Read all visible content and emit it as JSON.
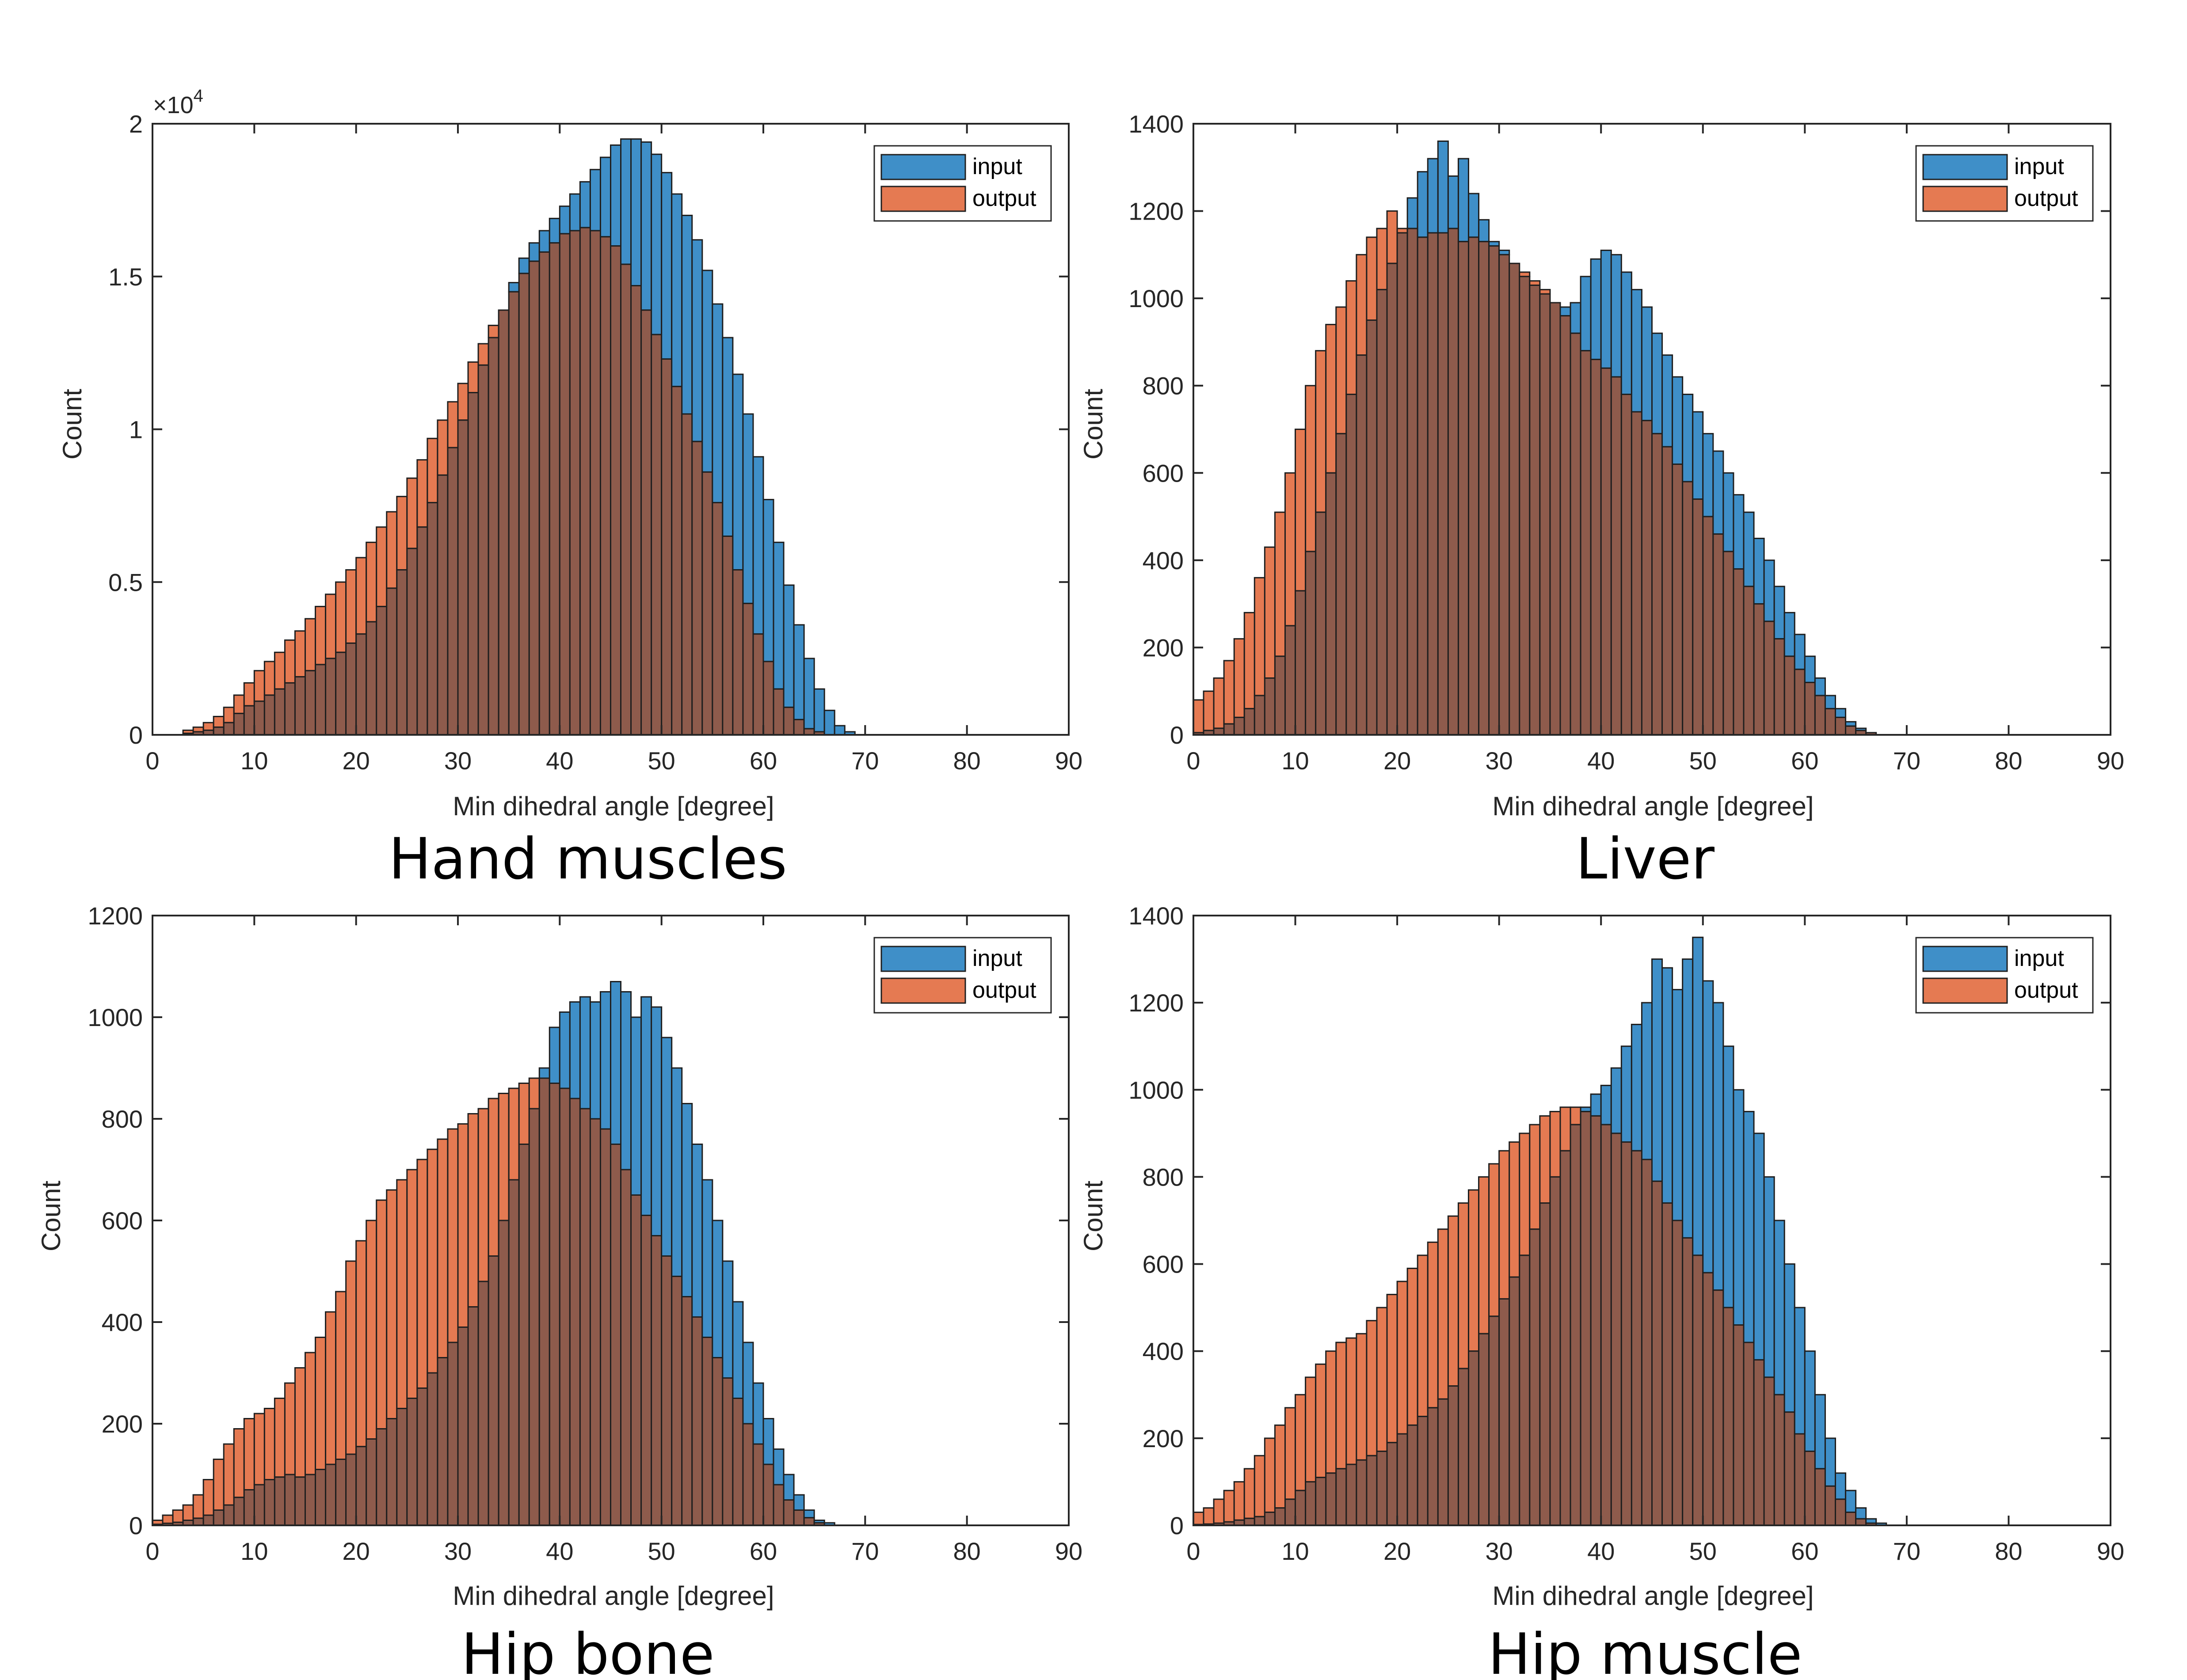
{
  "figure": {
    "series_names": [
      "input",
      "output"
    ],
    "colors": {
      "input": "#3f8fc8",
      "output": "#e57a52",
      "overlap": "#8e5b4c",
      "axes": "#262626",
      "edge": "#1f1f1f"
    }
  },
  "chart_data": [
    {
      "type": "bar",
      "title": "Hand muscles",
      "xlabel": "Min dihedral angle [degree]",
      "ylabel": "Count",
      "xlim": [
        0,
        90
      ],
      "ylim": [
        0,
        20000
      ],
      "bin_width": 1,
      "xticks": [
        0,
        10,
        20,
        30,
        40,
        50,
        60,
        70,
        80,
        90
      ],
      "yticks": [
        0,
        5000,
        10000,
        15000,
        20000
      ],
      "ytick_labels": [
        "0",
        "0.5",
        "1",
        "1.5",
        "2"
      ],
      "ytick_multiplier": "×10",
      "ytick_exponent": "4",
      "legend": {
        "position": "top-right",
        "entries": [
          "input",
          "output"
        ]
      },
      "series": [
        {
          "name": "input",
          "bin_start": 0,
          "values": [
            0,
            0,
            0,
            50,
            100,
            150,
            250,
            400,
            700,
            950,
            1100,
            1300,
            1500,
            1700,
            1900,
            2100,
            2300,
            2500,
            2700,
            3000,
            3300,
            3700,
            4200,
            4800,
            5400,
            6100,
            6800,
            7600,
            8500,
            9400,
            10300,
            11200,
            12100,
            13000,
            13900,
            14800,
            15600,
            16100,
            16500,
            16900,
            17300,
            17700,
            18100,
            18500,
            18900,
            19300,
            19500,
            19500,
            19400,
            19000,
            18400,
            17700,
            17000,
            16200,
            15200,
            14100,
            13000,
            11800,
            10500,
            9100,
            7700,
            6300,
            4900,
            3600,
            2500,
            1500,
            800,
            300,
            100,
            0,
            0,
            0,
            0,
            0,
            0,
            0,
            0,
            0,
            0,
            0,
            0,
            0,
            0,
            0,
            0,
            0,
            0,
            0,
            0,
            0
          ]
        },
        {
          "name": "output",
          "bin_start": 0,
          "values": [
            0,
            0,
            0,
            150,
            250,
            400,
            600,
            900,
            1300,
            1700,
            2100,
            2400,
            2700,
            3100,
            3400,
            3800,
            4200,
            4600,
            5000,
            5400,
            5800,
            6300,
            6800,
            7300,
            7800,
            8400,
            9000,
            9700,
            10300,
            10900,
            11500,
            12200,
            12800,
            13400,
            13900,
            14500,
            15100,
            15500,
            15800,
            16100,
            16400,
            16500,
            16600,
            16500,
            16300,
            16000,
            15400,
            14700,
            13900,
            13100,
            12300,
            11400,
            10500,
            9600,
            8600,
            7600,
            6500,
            5400,
            4300,
            3300,
            2400,
            1500,
            900,
            500,
            200,
            100,
            0,
            0,
            0,
            0,
            0,
            0,
            0,
            0,
            0,
            0,
            0,
            0,
            0,
            0,
            0,
            0,
            0,
            0,
            0,
            0,
            0,
            0,
            0,
            0
          ]
        }
      ]
    },
    {
      "type": "bar",
      "title": "Liver",
      "xlabel": "Min dihedral angle [degree]",
      "ylabel": "Count",
      "xlim": [
        0,
        90
      ],
      "ylim": [
        0,
        1400
      ],
      "bin_width": 1,
      "xticks": [
        0,
        10,
        20,
        30,
        40,
        50,
        60,
        70,
        80,
        90
      ],
      "yticks": [
        0,
        200,
        400,
        600,
        800,
        1000,
        1200,
        1400
      ],
      "ytick_labels": [
        "0",
        "200",
        "400",
        "600",
        "800",
        "1000",
        "1200",
        "1400"
      ],
      "legend": {
        "position": "top-right",
        "entries": [
          "input",
          "output"
        ]
      },
      "series": [
        {
          "name": "input",
          "bin_start": 0,
          "values": [
            5,
            10,
            15,
            25,
            40,
            60,
            90,
            130,
            180,
            250,
            330,
            420,
            510,
            600,
            690,
            780,
            870,
            950,
            1020,
            1080,
            1150,
            1230,
            1290,
            1320,
            1360,
            1280,
            1320,
            1240,
            1180,
            1130,
            1110,
            1080,
            1050,
            1030,
            1010,
            990,
            980,
            990,
            1050,
            1090,
            1110,
            1100,
            1060,
            1020,
            980,
            920,
            870,
            820,
            780,
            740,
            690,
            650,
            600,
            550,
            510,
            450,
            400,
            340,
            280,
            230,
            180,
            130,
            90,
            60,
            30,
            15,
            5,
            0,
            0,
            0,
            0,
            0,
            0,
            0,
            0,
            0,
            0,
            0,
            0,
            0,
            0,
            0,
            0,
            0,
            0,
            0,
            0,
            0,
            0,
            0
          ]
        },
        {
          "name": "output",
          "bin_start": 0,
          "values": [
            80,
            100,
            130,
            170,
            220,
            280,
            360,
            430,
            510,
            600,
            700,
            800,
            880,
            940,
            980,
            1040,
            1100,
            1140,
            1160,
            1200,
            1160,
            1160,
            1140,
            1150,
            1150,
            1160,
            1130,
            1140,
            1130,
            1120,
            1100,
            1080,
            1060,
            1040,
            1020,
            990,
            960,
            920,
            880,
            860,
            840,
            820,
            780,
            740,
            720,
            690,
            660,
            620,
            580,
            540,
            500,
            460,
            420,
            380,
            340,
            300,
            260,
            220,
            180,
            150,
            120,
            90,
            60,
            40,
            20,
            10,
            5,
            0,
            0,
            0,
            0,
            0,
            0,
            0,
            0,
            0,
            0,
            0,
            0,
            0,
            0,
            0,
            0,
            0,
            0,
            0,
            0,
            0,
            0,
            0
          ]
        }
      ]
    },
    {
      "type": "bar",
      "title": "Hip bone",
      "xlabel": "Min dihedral angle [degree]",
      "ylabel": "Count",
      "xlim": [
        0,
        90
      ],
      "ylim": [
        0,
        1200
      ],
      "bin_width": 1,
      "xticks": [
        0,
        10,
        20,
        30,
        40,
        50,
        60,
        70,
        80,
        90
      ],
      "yticks": [
        0,
        200,
        400,
        600,
        800,
        1000,
        1200
      ],
      "ytick_labels": [
        "0",
        "200",
        "400",
        "600",
        "800",
        "1000",
        "1200"
      ],
      "legend": {
        "position": "top-right",
        "entries": [
          "input",
          "output"
        ]
      },
      "series": [
        {
          "name": "input",
          "bin_start": 0,
          "values": [
            2,
            4,
            6,
            10,
            14,
            20,
            30,
            40,
            55,
            70,
            80,
            90,
            95,
            100,
            95,
            100,
            110,
            120,
            130,
            140,
            155,
            170,
            190,
            210,
            230,
            250,
            270,
            300,
            330,
            360,
            390,
            430,
            480,
            530,
            600,
            680,
            750,
            820,
            900,
            980,
            1010,
            1030,
            1040,
            1030,
            1050,
            1070,
            1050,
            1000,
            1040,
            1020,
            960,
            900,
            830,
            750,
            680,
            600,
            520,
            440,
            360,
            280,
            210,
            150,
            100,
            60,
            30,
            10,
            5,
            0,
            0,
            0,
            0,
            0,
            0,
            0,
            0,
            0,
            0,
            0,
            0,
            0,
            0,
            0,
            0,
            0,
            0,
            0,
            0,
            0,
            0,
            0
          ]
        },
        {
          "name": "output",
          "bin_start": 0,
          "values": [
            10,
            20,
            30,
            40,
            60,
            90,
            130,
            160,
            190,
            210,
            220,
            230,
            250,
            280,
            310,
            340,
            370,
            420,
            460,
            520,
            560,
            600,
            640,
            660,
            680,
            700,
            720,
            740,
            760,
            780,
            790,
            810,
            820,
            840,
            850,
            860,
            870,
            880,
            880,
            870,
            860,
            840,
            820,
            800,
            780,
            750,
            700,
            650,
            610,
            570,
            530,
            490,
            450,
            410,
            370,
            330,
            290,
            250,
            200,
            160,
            120,
            80,
            50,
            30,
            15,
            5,
            0,
            0,
            0,
            0,
            0,
            0,
            0,
            0,
            0,
            0,
            0,
            0,
            0,
            0,
            0,
            0,
            0,
            0,
            0,
            0,
            0,
            0,
            0,
            0
          ]
        }
      ]
    },
    {
      "type": "bar",
      "title": "Hip muscle",
      "xlabel": "Min dihedral angle [degree]",
      "ylabel": "Count",
      "xlim": [
        0,
        90
      ],
      "ylim": [
        0,
        1400
      ],
      "bin_width": 1,
      "xticks": [
        0,
        10,
        20,
        30,
        40,
        50,
        60,
        70,
        80,
        90
      ],
      "yticks": [
        0,
        200,
        400,
        600,
        800,
        1000,
        1200,
        1400
      ],
      "ytick_labels": [
        "0",
        "200",
        "400",
        "600",
        "800",
        "1000",
        "1200",
        "1400"
      ],
      "legend": {
        "position": "top-right",
        "entries": [
          "input",
          "output"
        ]
      },
      "series": [
        {
          "name": "input",
          "bin_start": 0,
          "values": [
            2,
            3,
            5,
            8,
            12,
            16,
            20,
            30,
            40,
            60,
            80,
            100,
            110,
            120,
            130,
            140,
            150,
            160,
            170,
            190,
            210,
            230,
            250,
            270,
            290,
            320,
            360,
            400,
            440,
            480,
            520,
            570,
            620,
            680,
            740,
            800,
            860,
            920,
            960,
            990,
            1010,
            1050,
            1100,
            1150,
            1200,
            1300,
            1280,
            1230,
            1300,
            1350,
            1250,
            1200,
            1100,
            1000,
            950,
            900,
            800,
            700,
            600,
            500,
            400,
            300,
            200,
            120,
            80,
            40,
            15,
            5,
            0,
            0,
            0,
            0,
            0,
            0,
            0,
            0,
            0,
            0,
            0,
            0,
            0,
            0,
            0,
            0,
            0,
            0,
            0,
            0,
            0,
            0
          ]
        },
        {
          "name": "output",
          "bin_start": 0,
          "values": [
            30,
            40,
            60,
            80,
            100,
            130,
            160,
            200,
            230,
            270,
            300,
            340,
            370,
            400,
            420,
            430,
            440,
            470,
            500,
            530,
            560,
            590,
            620,
            650,
            680,
            710,
            740,
            770,
            800,
            830,
            860,
            880,
            900,
            920,
            940,
            950,
            960,
            960,
            950,
            940,
            920,
            900,
            880,
            860,
            840,
            790,
            740,
            700,
            660,
            620,
            580,
            540,
            500,
            460,
            420,
            380,
            340,
            300,
            260,
            210,
            170,
            130,
            90,
            60,
            30,
            15,
            5,
            0,
            0,
            0,
            0,
            0,
            0,
            0,
            0,
            0,
            0,
            0,
            0,
            0,
            0,
            0,
            0,
            0,
            0,
            0,
            0,
            0,
            0,
            0
          ]
        }
      ]
    }
  ]
}
